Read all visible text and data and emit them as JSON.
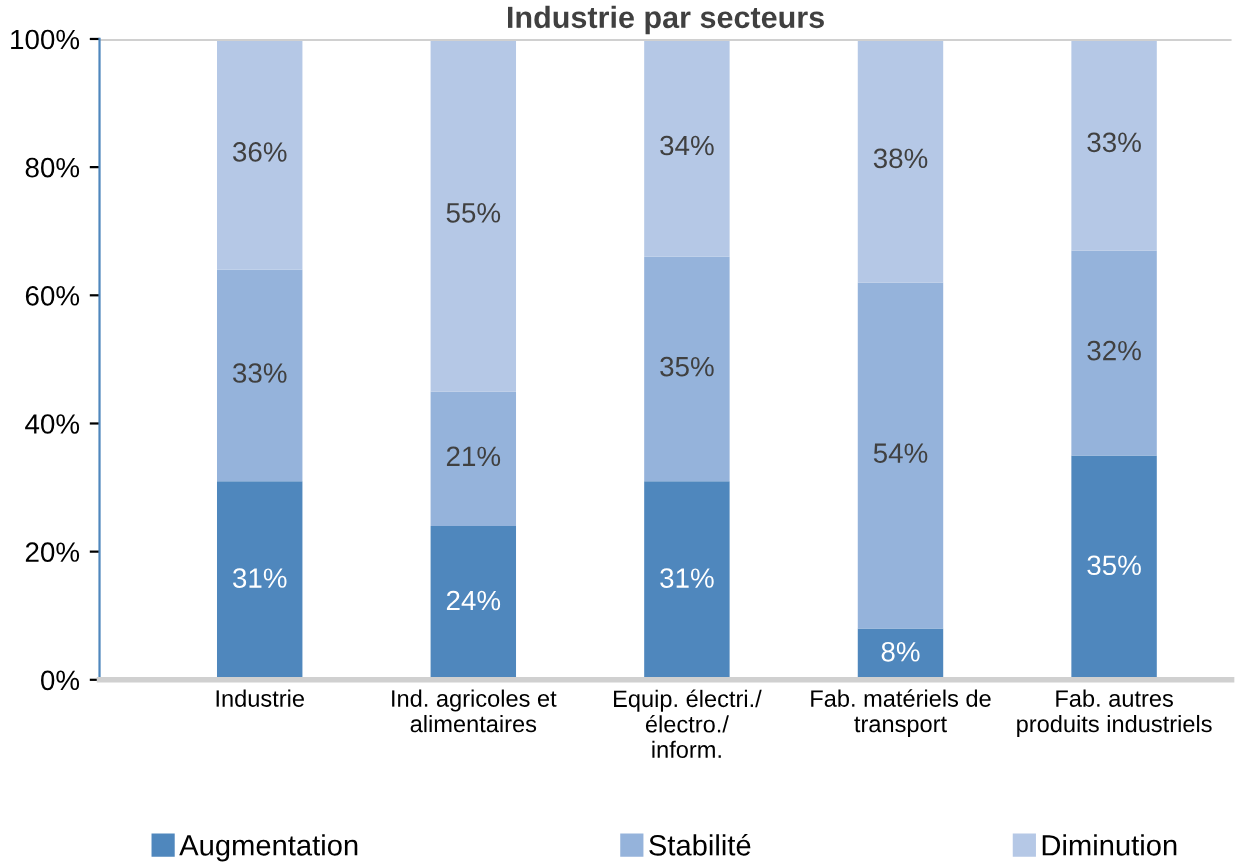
{
  "chart_data": {
    "type": "bar",
    "title": "Industrie par secteurs",
    "stacked": true,
    "categories": [
      "Industrie",
      "Ind. agricoles et\nalimentaires",
      "Equip. électri./\nélectro./\ninform.",
      "Fab. matériels de\ntransport",
      "Fab. autres\nproduits industriels"
    ],
    "series": [
      {
        "name": "Augmentation",
        "color": "#4f87bd",
        "values": [
          31,
          24,
          31,
          8,
          35
        ],
        "value_labels": [
          "31%",
          "24%",
          "31%",
          "8%",
          "35%"
        ]
      },
      {
        "name": "Stabilité",
        "color": "#95b3db",
        "values": [
          33,
          21,
          35,
          54,
          32
        ],
        "value_labels": [
          "33%",
          "21%",
          "35%",
          "54%",
          "32%"
        ]
      },
      {
        "name": "Diminution",
        "color": "#b5c8e6",
        "values": [
          36,
          55,
          34,
          38,
          33
        ],
        "value_labels": [
          "36%",
          "55%",
          "34%",
          "38%",
          "33%"
        ]
      }
    ],
    "ylim": [
      0,
      100
    ],
    "yticks": [
      {
        "value": 0,
        "label": "0%"
      },
      {
        "value": 20,
        "label": "20%"
      },
      {
        "value": 40,
        "label": "40%"
      },
      {
        "value": 60,
        "label": "60%"
      },
      {
        "value": 80,
        "label": "80%"
      },
      {
        "value": 100,
        "label": "100%"
      }
    ],
    "grid": false,
    "legend": "bottom"
  }
}
